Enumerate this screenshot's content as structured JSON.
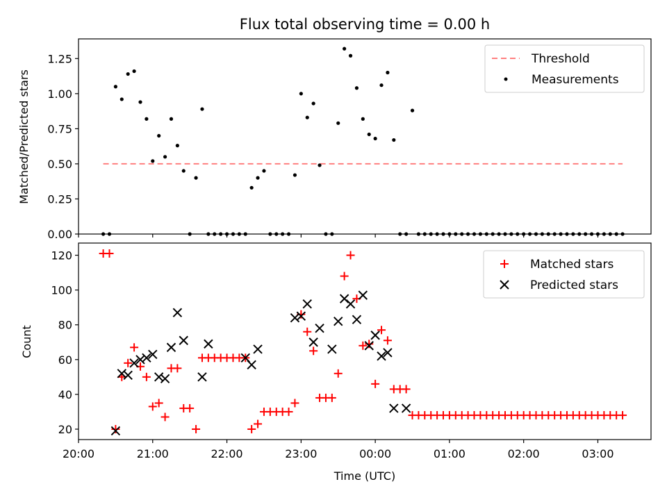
{
  "chart_data": [
    {
      "type": "scatter",
      "title": "Flux total observing time = 0.00 h",
      "xlabel": "",
      "ylabel": "Matched/Predicted stars",
      "ylim": [
        0,
        1.39
      ],
      "yticks": [
        0.0,
        0.25,
        0.5,
        0.75,
        1.0,
        1.25
      ],
      "yticklabels": [
        "0.00",
        "0.25",
        "0.50",
        "0.75",
        "1.00",
        "1.25"
      ],
      "xrange": [
        "20:00",
        "03:43"
      ],
      "legend_position": "top-right",
      "threshold": {
        "name": "Threshold",
        "value": 0.5,
        "x_start": "20:20",
        "x_end": "03:20",
        "color": "#ff7f7f",
        "style": "dashed"
      },
      "series": [
        {
          "name": "Measurements",
          "color": "#000000",
          "marker": "dot",
          "x": [
            "20:20",
            "20:25",
            "20:30",
            "20:35",
            "20:40",
            "20:45",
            "20:50",
            "20:55",
            "21:00",
            "21:05",
            "21:10",
            "21:15",
            "21:20",
            "21:25",
            "21:30",
            "21:35",
            "21:40",
            "21:45",
            "21:50",
            "21:55",
            "22:00",
            "22:05",
            "22:10",
            "22:15",
            "22:20",
            "22:25",
            "22:30",
            "22:35",
            "22:40",
            "22:45",
            "22:50",
            "22:55",
            "23:00",
            "23:05",
            "23:10",
            "23:15",
            "23:20",
            "23:25",
            "23:30",
            "23:35",
            "23:40",
            "23:45",
            "23:50",
            "23:55",
            "00:00",
            "00:05",
            "00:10",
            "00:15",
            "00:20",
            "00:25",
            "00:30",
            "00:35",
            "00:40",
            "00:45",
            "00:50",
            "00:55",
            "01:00",
            "01:05",
            "01:10",
            "01:15",
            "01:20",
            "01:25",
            "01:30",
            "01:35",
            "01:40",
            "01:45",
            "01:50",
            "01:55",
            "02:00",
            "02:05",
            "02:10",
            "02:15",
            "02:20",
            "02:25",
            "02:30",
            "02:35",
            "02:40",
            "02:45",
            "02:50",
            "02:55",
            "03:00",
            "03:05",
            "03:10",
            "03:15",
            "03:20"
          ],
          "y": [
            0.0,
            0.0,
            1.05,
            0.96,
            1.14,
            1.16,
            0.94,
            0.82,
            0.52,
            0.7,
            0.55,
            0.82,
            0.63,
            0.45,
            0.0,
            0.4,
            0.89,
            0.0,
            0.0,
            0.0,
            0.0,
            0.0,
            0.0,
            0.0,
            0.33,
            0.4,
            0.45,
            0.0,
            0.0,
            0.0,
            0.0,
            0.42,
            1.0,
            0.83,
            0.93,
            0.49,
            0.0,
            0.0,
            0.79,
            1.32,
            1.27,
            1.04,
            0.82,
            0.71,
            0.68,
            1.06,
            1.15,
            0.67,
            0.0,
            0.0,
            0.88,
            0.0,
            0.0,
            0.0,
            0.0,
            0.0,
            0.0,
            0.0,
            0.0,
            0.0,
            0.0,
            0.0,
            0.0,
            0.0,
            0.0,
            0.0,
            0.0,
            0.0,
            0.0,
            0.0,
            0.0,
            0.0,
            0.0,
            0.0,
            0.0,
            0.0,
            0.0,
            0.0,
            0.0,
            0.0,
            0.0,
            0.0,
            0.0,
            0.0,
            0.0
          ]
        }
      ]
    },
    {
      "type": "scatter",
      "title": "",
      "xlabel": "Time (UTC)",
      "ylabel": "Count",
      "ylim": [
        14,
        127
      ],
      "yticks": [
        20,
        40,
        60,
        80,
        100,
        120
      ],
      "yticklabels": [
        "20",
        "40",
        "60",
        "80",
        "100",
        "120"
      ],
      "xrange": [
        "20:00",
        "03:43"
      ],
      "xticks": [
        "20:00",
        "21:00",
        "22:00",
        "23:00",
        "00:00",
        "01:00",
        "02:00",
        "03:00"
      ],
      "xticklabels": [
        "20:00",
        "21:00",
        "22:00",
        "23:00",
        "00:00",
        "01:00",
        "02:00",
        "03:00"
      ],
      "legend_position": "top-right",
      "series": [
        {
          "name": "Matched stars",
          "color": "#ff0000",
          "marker": "plus",
          "x": [
            "20:20",
            "20:25",
            "20:30",
            "20:35",
            "20:40",
            "20:45",
            "20:50",
            "20:55",
            "21:00",
            "21:05",
            "21:10",
            "21:15",
            "21:20",
            "21:25",
            "21:30",
            "21:35",
            "21:40",
            "21:45",
            "21:50",
            "21:55",
            "22:00",
            "22:05",
            "22:10",
            "22:15",
            "22:20",
            "22:25",
            "22:30",
            "22:35",
            "22:40",
            "22:45",
            "22:50",
            "22:55",
            "23:00",
            "23:05",
            "23:10",
            "23:15",
            "23:20",
            "23:25",
            "23:30",
            "23:35",
            "23:40",
            "23:45",
            "23:50",
            "23:55",
            "00:00",
            "00:05",
            "00:10",
            "00:15",
            "00:20",
            "00:25",
            "00:30",
            "00:35",
            "00:40",
            "00:45",
            "00:50",
            "00:55",
            "01:00",
            "01:05",
            "01:10",
            "01:15",
            "01:20",
            "01:25",
            "01:30",
            "01:35",
            "01:40",
            "01:45",
            "01:50",
            "01:55",
            "02:00",
            "02:05",
            "02:10",
            "02:15",
            "02:20",
            "02:25",
            "02:30",
            "02:35",
            "02:40",
            "02:45",
            "02:50",
            "02:55",
            "03:00",
            "03:05",
            "03:10",
            "03:15",
            "03:20"
          ],
          "y": [
            121,
            121,
            20,
            50,
            58,
            67,
            56,
            50,
            33,
            35,
            27,
            55,
            55,
            32,
            32,
            20,
            61,
            61,
            61,
            61,
            61,
            61,
            61,
            61,
            20,
            23,
            30,
            30,
            30,
            30,
            30,
            35,
            86,
            76,
            65,
            38,
            38,
            38,
            52,
            108,
            120,
            95,
            68,
            69,
            46,
            77,
            71,
            43,
            43,
            43,
            28,
            28,
            28,
            28,
            28,
            28,
            28,
            28,
            28,
            28,
            28,
            28,
            28,
            28,
            28,
            28,
            28,
            28,
            28,
            28,
            28,
            28,
            28,
            28,
            28,
            28,
            28,
            28,
            28,
            28,
            28,
            28,
            28,
            28,
            28
          ]
        },
        {
          "name": "Predicted stars",
          "color": "#000000",
          "marker": "x",
          "x": [
            "20:30",
            "20:35",
            "20:40",
            "20:45",
            "20:50",
            "20:55",
            "21:00",
            "21:05",
            "21:10",
            "21:15",
            "21:20",
            "21:25",
            "21:40",
            "21:45",
            "22:15",
            "22:20",
            "22:25",
            "22:55",
            "23:00",
            "23:05",
            "23:10",
            "23:15",
            "23:25",
            "23:30",
            "23:35",
            "23:40",
            "23:45",
            "23:50",
            "23:55",
            "00:00",
            "00:05",
            "00:10",
            "00:15",
            "00:25"
          ],
          "y": [
            19,
            52,
            51,
            58,
            60,
            61,
            63,
            50,
            49,
            67,
            87,
            71,
            50,
            69,
            61,
            57,
            66,
            84,
            85,
            92,
            70,
            78,
            66,
            82,
            95,
            92,
            83,
            97,
            68,
            74,
            62,
            64,
            32,
            32
          ]
        }
      ]
    }
  ]
}
